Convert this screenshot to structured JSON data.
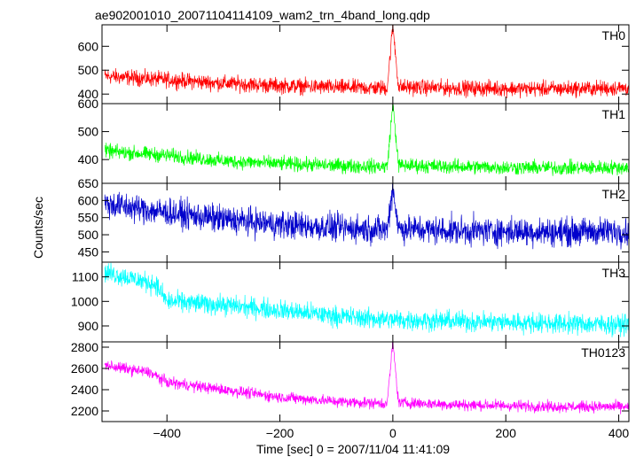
{
  "title": "ae902001010_20071104114109_wam2_trn_4band_long.qdp",
  "chart_data": {
    "type": "line",
    "title": "ae902001010_20071104114109_wam2_trn_4band_long.qdp",
    "xlabel": "Time [sec] 0 = 2007/11/04 11:41:09",
    "ylabel": "Counts/sec",
    "xlim": [
      -515,
      418
    ],
    "xticks": [
      -400,
      -200,
      0,
      200,
      400
    ],
    "xtick_labels": [
      "−400",
      "−200",
      "0",
      "200",
      "400"
    ],
    "panels": [
      {
        "name": "TH0",
        "color": "#ff0000",
        "ylim": [
          360,
          690
        ],
        "yticks": [
          400,
          500,
          600
        ],
        "ytick_labels": [
          "400",
          "500",
          "600"
        ],
        "x": [
          -510,
          -400,
          -300,
          -200,
          -100,
          -10,
          0,
          10,
          100,
          200,
          300,
          410
        ],
        "mean": [
          475,
          460,
          445,
          435,
          428,
          425,
          690,
          430,
          425,
          423,
          422,
          425
        ],
        "noise": 28
      },
      {
        "name": "TH1",
        "color": "#00ff00",
        "ylim": [
          315,
          600
        ],
        "yticks": [
          400,
          500
        ],
        "ytick_labels": [
          "400",
          "500"
        ],
        "extra_tick_labels": [
          "600"
        ],
        "x": [
          -510,
          -400,
          -300,
          -200,
          -100,
          -10,
          0,
          10,
          100,
          200,
          300,
          410
        ],
        "mean": [
          430,
          415,
          395,
          385,
          378,
          375,
          600,
          380,
          375,
          372,
          370,
          372
        ],
        "noise": 22
      },
      {
        "name": "TH2",
        "color": "#0000cc",
        "ylim": [
          420,
          650
        ],
        "yticks": [
          450,
          500,
          550,
          600
        ],
        "ytick_labels": [
          "450",
          "500",
          "550",
          "600"
        ],
        "extra_tick_labels": [
          "650"
        ],
        "x": [
          -510,
          -400,
          -300,
          -200,
          -100,
          -10,
          0,
          10,
          100,
          200,
          300,
          410
        ],
        "mean": [
          590,
          565,
          545,
          530,
          520,
          515,
          640,
          518,
          512,
          510,
          508,
          510
        ],
        "noise": 35
      },
      {
        "name": "TH3",
        "color": "#00ffff",
        "ylim": [
          835,
          1160
        ],
        "yticks": [
          900,
          1000,
          1100
        ],
        "ytick_labels": [
          "900",
          "1000",
          "1100"
        ],
        "x": [
          -510,
          -420,
          -400,
          -300,
          -200,
          -100,
          0,
          100,
          200,
          300,
          410
        ],
        "mean": [
          1120,
          1070,
          1000,
          985,
          965,
          940,
          925,
          920,
          915,
          910,
          905
        ],
        "noise": 35
      },
      {
        "name": "TH0123",
        "color": "#ff00ff",
        "ylim": [
          2100,
          2850
        ],
        "yticks": [
          2200,
          2400,
          2600,
          2800
        ],
        "ytick_labels": [
          "2200",
          "2400",
          "2600",
          "2800"
        ],
        "x": [
          -510,
          -430,
          -400,
          -300,
          -200,
          -100,
          -10,
          0,
          10,
          100,
          200,
          300,
          410
        ],
        "mean": [
          2630,
          2560,
          2470,
          2400,
          2330,
          2290,
          2270,
          2850,
          2280,
          2260,
          2250,
          2240,
          2240
        ],
        "noise": 45
      }
    ]
  }
}
